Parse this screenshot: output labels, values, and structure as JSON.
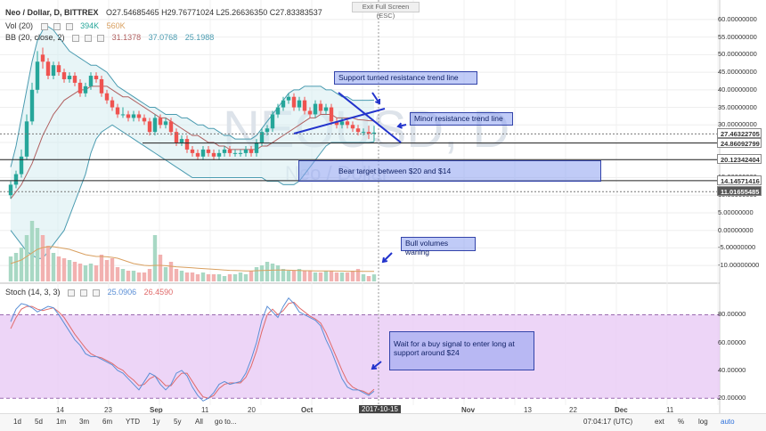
{
  "header": {
    "symbol": "Neo / Dollar, D, BITTREX",
    "ohlc": "O27.54685465 H29.76771024 L25.26636350 C27.83383537",
    "vol_label": "Vol (20)",
    "vol_v1": "394K",
    "vol_v2": "560K",
    "bb_label": "BB (20, close, 2)",
    "bb_v1": "31.1378",
    "bb_v2": "37.0768",
    "bb_v3": "25.1988",
    "stoch_label": "Stoch (14, 3, 3)",
    "stoch_v1": "25.0906",
    "stoch_v2": "26.4590"
  },
  "exit_fullscreen": "Exit Full Screen (ESC)",
  "price_axis": {
    "ticks": [
      "60.00000000",
      "55.00000000",
      "50.00000000",
      "45.00000000",
      "40.00000000",
      "35.00000000",
      "30.00000000",
      "25.00000000",
      "20.00000000",
      "15.00000000",
      "10.00000000",
      "5.00000000",
      "0.00000000",
      "-5.00000000",
      "-10.00000000"
    ],
    "tags": [
      "27.46322705",
      "24.86092799",
      "20.12342404",
      "14.14571416",
      "11.01655485"
    ]
  },
  "stoch_axis": {
    "ticks": [
      "80.00000",
      "60.00000",
      "40.00000",
      "20.00000"
    ]
  },
  "annotations": {
    "support_resistance": "Support turned resistance trend line",
    "minor_resistance": "Minor resistance trend line",
    "bear_target": "Bear target between $20 and $14",
    "bull_volumes": "Bull volumes waning",
    "wait_buy": "Wait for a buy signal to enter long at support around $24"
  },
  "watermark": {
    "line1": "NEOUSD, D",
    "line2": "Neo / Dollar"
  },
  "time_axis": {
    "labels": [
      "14",
      "23",
      "Sep",
      "11",
      "20",
      "Oct",
      "Nov",
      "13",
      "22",
      "Dec",
      "11"
    ],
    "current": "2017-10-15"
  },
  "bottom_bar": {
    "ranges": [
      "1d",
      "5d",
      "1m",
      "3m",
      "6m",
      "YTD",
      "1y",
      "5y",
      "All",
      "go to..."
    ],
    "clock": "07:04:17 (UTC)",
    "ext": "ext",
    "pct": "%",
    "log": "log",
    "auto": "auto"
  },
  "colors": {
    "up": "#26a69a",
    "down": "#ef5350",
    "bb": "#4a9bb0",
    "bb_fill": "#d6ecf1",
    "stoch_k": "#5b8fd6",
    "stoch_d": "#e06a6a",
    "stoch_bg": "#e9cbf5",
    "trend": "#2233cc"
  },
  "chart_data": [
    {
      "type": "candlestick",
      "title": "Neo / Dollar, D, BITTREX",
      "ylim": [
        -13,
        62
      ],
      "x": [
        "08-08",
        "08-09",
        "08-10",
        "08-11",
        "08-12",
        "08-13",
        "08-14",
        "08-15",
        "08-16",
        "08-17",
        "08-18",
        "08-19",
        "08-20",
        "08-21",
        "08-22",
        "08-23",
        "08-24",
        "08-25",
        "08-26",
        "08-27",
        "08-28",
        "08-29",
        "08-30",
        "08-31",
        "09-01",
        "09-02",
        "09-03",
        "09-04",
        "09-05",
        "09-06",
        "09-07",
        "09-08",
        "09-09",
        "09-10",
        "09-11",
        "09-12",
        "09-13",
        "09-14",
        "09-15",
        "09-16",
        "09-17",
        "09-18",
        "09-19",
        "09-20",
        "09-21",
        "09-22",
        "09-23",
        "09-24",
        "09-25",
        "09-26",
        "09-27",
        "09-28",
        "09-29",
        "09-30",
        "10-01",
        "10-02",
        "10-03",
        "10-04",
        "10-05",
        "10-06",
        "10-07",
        "10-08",
        "10-09",
        "10-10",
        "10-11",
        "10-12",
        "10-13",
        "10-14",
        "10-15"
      ],
      "open": [
        10,
        13,
        16,
        21,
        31,
        40,
        50,
        48,
        44,
        47,
        45,
        43,
        44,
        42,
        39,
        41,
        44,
        43,
        39,
        37,
        35,
        33,
        33,
        32,
        33,
        32,
        31,
        28,
        32,
        30,
        31,
        28,
        25,
        26,
        23,
        22,
        21,
        23,
        22,
        21,
        22,
        23,
        22,
        22,
        22,
        23,
        22,
        25,
        28,
        29,
        33,
        35,
        37,
        38,
        35,
        37,
        34,
        33,
        36,
        34,
        35,
        31,
        30,
        31,
        30,
        29,
        28,
        28,
        27.5
      ],
      "close": [
        13,
        16,
        21,
        31,
        40,
        48,
        48,
        44,
        47,
        45,
        43,
        44,
        42,
        39,
        41,
        44,
        43,
        39,
        37,
        35,
        33,
        33,
        32,
        33,
        32,
        31,
        28,
        32,
        30,
        31,
        28,
        25,
        26,
        23,
        22,
        21,
        23,
        22,
        21,
        22,
        23,
        22,
        22,
        22,
        23,
        22,
        25,
        28,
        29,
        33,
        35,
        37,
        38,
        35,
        37,
        34,
        33,
        36,
        34,
        35,
        31,
        30,
        31,
        30,
        29,
        28,
        28,
        27.5,
        27.83
      ],
      "high": [
        14,
        17,
        23,
        33,
        42,
        51,
        52,
        49,
        48,
        48,
        46,
        45,
        45,
        43,
        42,
        45,
        45,
        44,
        40,
        38,
        36,
        35,
        34,
        34,
        34,
        33,
        32,
        33,
        33,
        32,
        32,
        29,
        27,
        27,
        24,
        23,
        24,
        24,
        23,
        23,
        24,
        24,
        23,
        23,
        24,
        24,
        26,
        29,
        30,
        34,
        36,
        38,
        39,
        39,
        38,
        38,
        35,
        37,
        37,
        36,
        36,
        32,
        32,
        32,
        31,
        30,
        29,
        29.8,
        29.77
      ],
      "low": [
        9,
        12,
        15,
        20,
        30,
        39,
        46,
        43,
        43,
        44,
        42,
        42,
        41,
        38,
        38,
        40,
        42,
        38,
        36,
        34,
        32,
        32,
        31,
        31,
        31,
        30,
        27,
        27,
        29,
        29,
        27,
        24,
        24,
        22,
        21,
        20,
        20,
        21,
        20,
        20,
        21,
        21,
        21,
        21,
        21,
        21,
        21,
        24,
        27,
        28,
        32,
        34,
        36,
        34,
        34,
        33,
        32,
        32,
        33,
        33,
        30,
        29,
        29,
        29,
        28,
        27,
        27,
        26,
        25.27
      ],
      "bb_upper": [
        18,
        24,
        32,
        40,
        48,
        54,
        57,
        58,
        57,
        55,
        53,
        51,
        50,
        49,
        48,
        47,
        47,
        46,
        45,
        43,
        41,
        40,
        39,
        38,
        37,
        36,
        35,
        35,
        34,
        33,
        33,
        33,
        32,
        32,
        31,
        30,
        30,
        29,
        29,
        28,
        27,
        27,
        26,
        26,
        26,
        26,
        27,
        29,
        31,
        33,
        35,
        37,
        39,
        40,
        40,
        41,
        41,
        41,
        41,
        40,
        40,
        39,
        38,
        38,
        37,
        37,
        37,
        37,
        37.08
      ],
      "bb_mid": [
        9,
        11,
        13,
        16,
        19,
        23,
        27,
        30,
        33,
        35,
        37,
        38,
        39,
        40,
        40,
        41,
        41,
        41,
        41,
        40,
        39,
        38,
        38,
        37,
        36,
        35,
        34,
        33,
        32,
        32,
        31,
        30,
        29,
        28,
        27,
        27,
        26,
        25,
        25,
        24,
        24,
        23,
        23,
        23,
        23,
        23,
        23,
        24,
        24,
        25,
        26,
        27,
        28,
        29,
        30,
        31,
        32,
        32,
        33,
        33,
        33,
        32,
        32,
        32,
        32,
        31.5,
        31.4,
        31.2,
        31.14
      ],
      "bb_lower": [
        0,
        -2,
        -4,
        -6,
        -7,
        -8,
        -8,
        -6,
        -4,
        -2,
        0,
        4,
        8,
        12,
        16,
        22,
        26,
        28,
        29,
        30,
        29,
        28,
        27,
        26,
        25,
        24,
        23,
        22,
        21,
        20,
        19,
        18,
        17,
        16,
        15,
        15,
        15,
        15,
        15,
        15,
        15,
        15,
        15,
        15,
        15,
        15,
        15,
        15,
        14,
        14,
        14,
        13,
        13,
        13,
        14,
        16,
        18,
        20,
        22,
        24,
        25,
        25,
        25,
        25,
        25,
        25,
        25,
        25,
        25.2
      ]
    },
    {
      "type": "bar",
      "title": "Vol (20)",
      "ylim": [
        0,
        4000000
      ],
      "values": [
        1400000,
        1600000,
        1900000,
        2600000,
        3400000,
        3000000,
        2600000,
        2000000,
        1600000,
        1400000,
        1300000,
        1200000,
        1100000,
        1000000,
        900000,
        1000000,
        900000,
        1500000,
        1200000,
        1300000,
        800000,
        700000,
        600000,
        600000,
        500000,
        500000,
        700000,
        2600000,
        1500000,
        800000,
        1100000,
        700000,
        600000,
        500000,
        500000,
        400000,
        500000,
        400000,
        400000,
        400000,
        300000,
        400000,
        400000,
        500000,
        400000,
        600000,
        800000,
        900000,
        1100000,
        1000000,
        900000,
        700000,
        600000,
        600000,
        700000,
        600000,
        600000,
        500000,
        500000,
        600000,
        600000,
        500000,
        500000,
        500000,
        600000,
        700000,
        400000,
        300000,
        394000
      ],
      "ma": [
        1000000,
        1100000,
        1200000,
        1400000,
        1600000,
        1800000,
        1900000,
        1950000,
        1950000,
        1900000,
        1850000,
        1800000,
        1700000,
        1600000,
        1500000,
        1450000,
        1400000,
        1400000,
        1380000,
        1350000,
        1300000,
        1200000,
        1100000,
        1000000,
        950000,
        900000,
        880000,
        900000,
        900000,
        880000,
        850000,
        820000,
        800000,
        780000,
        760000,
        740000,
        720000,
        700000,
        680000,
        660000,
        640000,
        620000,
        610000,
        600000,
        590000,
        590000,
        600000,
        610000,
        620000,
        630000,
        640000,
        640000,
        630000,
        620000,
        610000,
        600000,
        600000,
        590000,
        590000,
        590000,
        590000,
        580000,
        580000,
        570000,
        570000,
        570000,
        565000,
        560000,
        560000
      ]
    },
    {
      "type": "line",
      "title": "Stoch (14, 3, 3)",
      "ylim": [
        15,
        95
      ],
      "series": [
        {
          "name": "25.0906",
          "values": [
            75,
            84,
            88,
            87,
            85,
            82,
            84,
            86,
            85,
            80,
            74,
            68,
            62,
            58,
            52,
            50,
            50,
            48,
            46,
            44,
            40,
            38,
            34,
            30,
            26,
            32,
            38,
            36,
            30,
            26,
            30,
            38,
            40,
            36,
            28,
            22,
            18,
            20,
            24,
            30,
            32,
            30,
            31,
            32,
            38,
            48,
            60,
            76,
            86,
            82,
            78,
            86,
            92,
            88,
            82,
            80,
            78,
            76,
            72,
            62,
            54,
            44,
            34,
            28,
            26,
            26,
            24,
            22,
            25.09
          ]
        },
        {
          "name": "26.4590",
          "values": [
            70,
            78,
            84,
            86,
            86,
            84,
            83,
            84,
            85,
            82,
            78,
            72,
            66,
            61,
            56,
            52,
            50,
            49,
            47,
            45,
            42,
            40,
            36,
            33,
            29,
            30,
            34,
            36,
            33,
            29,
            29,
            34,
            38,
            38,
            32,
            26,
            21,
            20,
            22,
            27,
            30,
            31,
            31,
            31,
            35,
            43,
            54,
            68,
            80,
            84,
            80,
            83,
            88,
            89,
            85,
            82,
            79,
            77,
            74,
            67,
            58,
            49,
            40,
            32,
            28,
            26,
            25,
            23,
            26.46
          ]
        }
      ]
    }
  ]
}
